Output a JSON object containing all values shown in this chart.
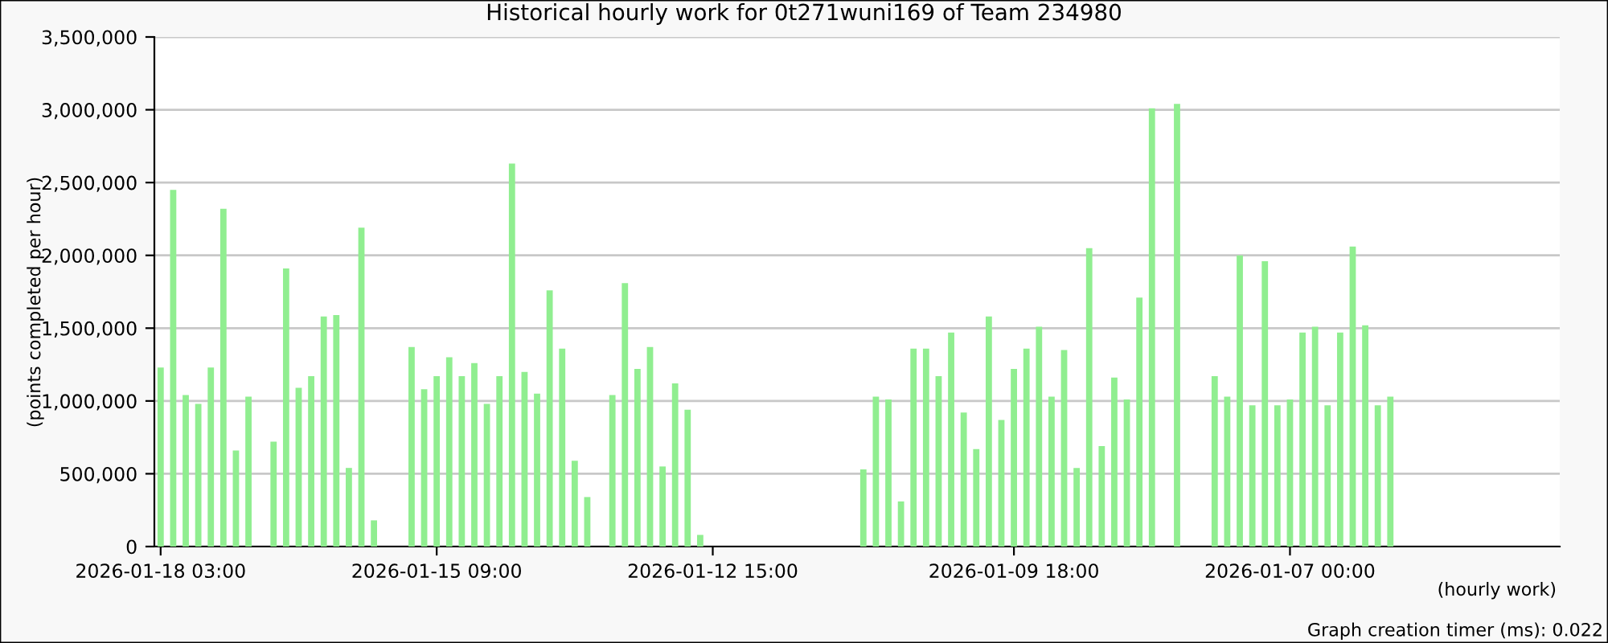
{
  "chart_data": {
    "type": "bar",
    "title": "Historical hourly work for 0t271wuni169 of Team 234980",
    "xlabel": "(hourly work)",
    "ylabel": "(points completed per hour)",
    "annotations": [
      "Graph creation timer (ms): 0.022"
    ],
    "categories": [
      "2026-01-18 03:00",
      null,
      null,
      null,
      null,
      null,
      null,
      null,
      null,
      null,
      null,
      null,
      null,
      null,
      null,
      null,
      null,
      null,
      null,
      null,
      null,
      null,
      "2026-01-15 09:00",
      null,
      null,
      null,
      null,
      null,
      null,
      null,
      null,
      null,
      null,
      null,
      null,
      null,
      null,
      null,
      null,
      null,
      null,
      null,
      null,
      null,
      "2026-01-12 15:00",
      null,
      null,
      null,
      null,
      null,
      null,
      null,
      null,
      null,
      null,
      null,
      null,
      null,
      null,
      null,
      null,
      null,
      null,
      null,
      null,
      null,
      null,
      null,
      "2026-01-09 18:00",
      null,
      null,
      null,
      null,
      null,
      null,
      null,
      null,
      null,
      null,
      null,
      null,
      null,
      null,
      null,
      null,
      null,
      null,
      null,
      null,
      null,
      "2026-01-07 00:00",
      null,
      null,
      null,
      null,
      null,
      null,
      null,
      null,
      null,
      null,
      null,
      null,
      null,
      null,
      null,
      null,
      null,
      null,
      null,
      null,
      null
    ],
    "values": [
      1230000,
      2450000,
      1040000,
      980000,
      1230000,
      2320000,
      660000,
      1030000,
      null,
      720000,
      1910000,
      1090000,
      1170000,
      1580000,
      1590000,
      540000,
      2190000,
      180000,
      null,
      null,
      1370000,
      1080000,
      1170000,
      1300000,
      1170000,
      1260000,
      980000,
      1170000,
      2630000,
      1200000,
      1050000,
      1760000,
      1360000,
      590000,
      340000,
      null,
      1040000,
      1810000,
      1220000,
      1370000,
      550000,
      1120000,
      940000,
      80000,
      null,
      null,
      null,
      null,
      null,
      null,
      null,
      null,
      null,
      null,
      null,
      null,
      530000,
      1030000,
      1010000,
      310000,
      1360000,
      1360000,
      1170000,
      1470000,
      920000,
      670000,
      1580000,
      870000,
      1220000,
      1360000,
      1510000,
      1030000,
      1350000,
      540000,
      2050000,
      690000,
      1160000,
      1010000,
      1710000,
      3010000,
      null,
      3040000,
      null,
      null,
      1170000,
      1030000,
      2000000,
      970000,
      1960000,
      970000,
      1010000,
      1470000,
      1510000,
      970000,
      1470000,
      2060000,
      1520000,
      970000,
      1030000,
      null,
      null,
      null,
      null,
      null,
      null,
      null,
      null,
      null,
      null,
      null,
      null,
      null
    ],
    "color": "#90ee90",
    "ylim": [
      0,
      3500000
    ],
    "yticks": [
      0,
      {
        "value": 500000,
        "label": "500,000"
      },
      {
        "value": 1000000,
        "label": "1,000,000"
      },
      {
        "value": 1500000,
        "label": "1,500,000"
      },
      {
        "value": 2000000,
        "label": "2,000,000"
      },
      {
        "value": 2500000,
        "label": "2,500,000"
      },
      {
        "value": 3000000,
        "label": "3,000,000"
      },
      {
        "value": 3500000,
        "label": "3,500,000"
      }
    ],
    "grid": "y"
  }
}
